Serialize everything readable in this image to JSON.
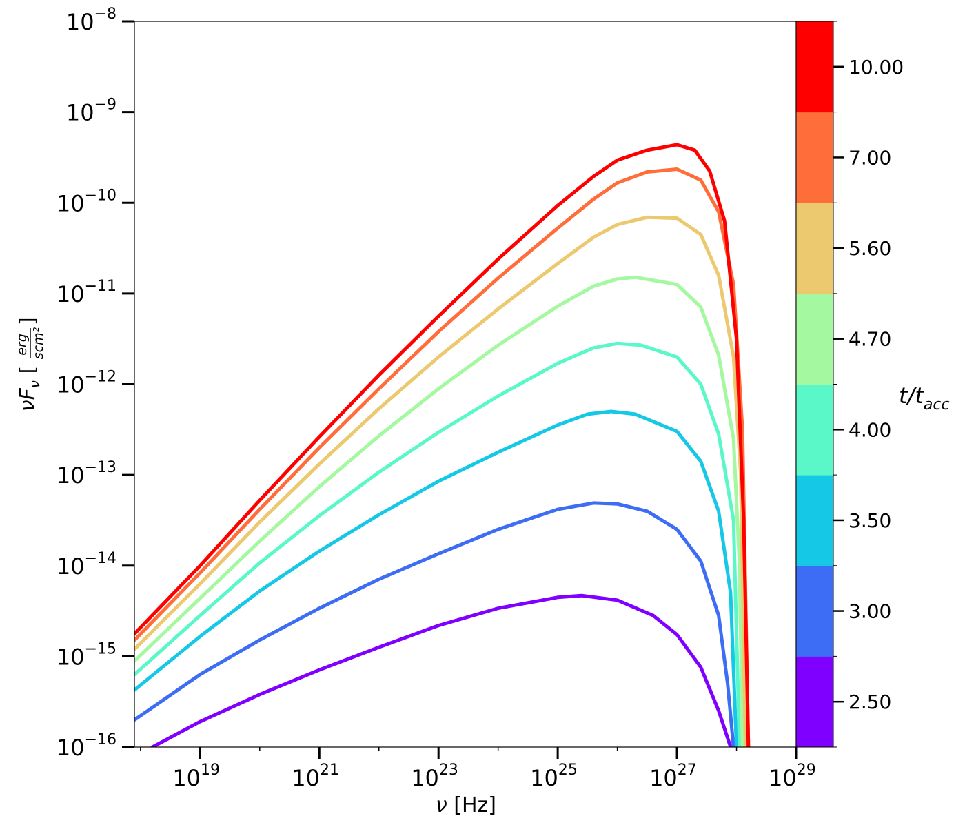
{
  "chart_data": {
    "type": "line",
    "xscale": "log",
    "yscale": "log",
    "xlim": [
      7.9e+17,
      1e+29
    ],
    "ylim": [
      1e-16,
      1e-08
    ],
    "x_ticks": [
      {
        "base": "10",
        "exp": "19"
      },
      {
        "base": "10",
        "exp": "21"
      },
      {
        "base": "10",
        "exp": "23"
      },
      {
        "base": "10",
        "exp": "25"
      },
      {
        "base": "10",
        "exp": "27"
      },
      {
        "base": "10",
        "exp": "29"
      }
    ],
    "y_ticks": [
      {
        "base": "10",
        "exp": "−16"
      },
      {
        "base": "10",
        "exp": "−15"
      },
      {
        "base": "10",
        "exp": "−14"
      },
      {
        "base": "10",
        "exp": "−13"
      },
      {
        "base": "10",
        "exp": "−12"
      },
      {
        "base": "10",
        "exp": "−11"
      },
      {
        "base": "10",
        "exp": "−10"
      },
      {
        "base": "10",
        "exp": "−9"
      },
      {
        "base": "10",
        "exp": "−8"
      }
    ],
    "xlabel": {
      "nu": "ν",
      "unit": " [Hz]"
    },
    "ylabel": {
      "nu": "ν",
      "F": "F",
      "sub": "ν",
      "open": " [",
      "num": "erg",
      "den": "scm²",
      "close": "]"
    },
    "colorbar": {
      "label": {
        "t": "t",
        "slash": "/t",
        "sub": "acc"
      },
      "position": "right",
      "ticks": [
        "2.50",
        "3.00",
        "3.50",
        "4.00",
        "4.70",
        "5.60",
        "7.00",
        "10.00"
      ],
      "colors": [
        "#8000ff",
        "#3c6df4",
        "#14c8e6",
        "#5af8c8",
        "#a4f89f",
        "#ecc86f",
        "#ff6e3a",
        "#ff0000"
      ]
    },
    "grid": false,
    "series": [
      {
        "t": 2.5,
        "color": "#8000ff",
        "points": [
          [
            18.2,
            -16
          ],
          [
            19,
            -15.72
          ],
          [
            20,
            -15.42
          ],
          [
            21,
            -15.15
          ],
          [
            22,
            -14.9
          ],
          [
            23,
            -14.66
          ],
          [
            24,
            -14.47
          ],
          [
            25,
            -14.35
          ],
          [
            25.4,
            -14.33
          ],
          [
            26,
            -14.38
          ],
          [
            26.6,
            -14.55
          ],
          [
            27,
            -14.76
          ],
          [
            27.4,
            -15.12
          ],
          [
            27.7,
            -15.6
          ],
          [
            27.9,
            -16
          ]
        ]
      },
      {
        "t": 3.0,
        "color": "#3c6df4",
        "points": [
          [
            17.9,
            -15.7
          ],
          [
            19,
            -15.2
          ],
          [
            20,
            -14.82
          ],
          [
            21,
            -14.47
          ],
          [
            22,
            -14.15
          ],
          [
            23,
            -13.87
          ],
          [
            24,
            -13.6
          ],
          [
            25,
            -13.38
          ],
          [
            25.6,
            -13.31
          ],
          [
            26,
            -13.32
          ],
          [
            26.5,
            -13.4
          ],
          [
            27,
            -13.6
          ],
          [
            27.4,
            -13.95
          ],
          [
            27.7,
            -14.55
          ],
          [
            27.85,
            -15.3
          ],
          [
            27.95,
            -16
          ]
        ]
      },
      {
        "t": 3.5,
        "color": "#14c8e6",
        "points": [
          [
            17.9,
            -15.37
          ],
          [
            19,
            -14.78
          ],
          [
            20,
            -14.28
          ],
          [
            21,
            -13.84
          ],
          [
            22,
            -13.44
          ],
          [
            23,
            -13.07
          ],
          [
            24,
            -12.75
          ],
          [
            25,
            -12.45
          ],
          [
            25.5,
            -12.33
          ],
          [
            25.9,
            -12.3
          ],
          [
            26.3,
            -12.33
          ],
          [
            27,
            -12.52
          ],
          [
            27.4,
            -12.85
          ],
          [
            27.7,
            -13.4
          ],
          [
            27.9,
            -14.3
          ],
          [
            28,
            -16
          ]
        ]
      },
      {
        "t": 4.0,
        "color": "#5af8c8",
        "points": [
          [
            17.9,
            -15.2
          ],
          [
            19,
            -14.55
          ],
          [
            20,
            -13.97
          ],
          [
            21,
            -13.45
          ],
          [
            22,
            -12.97
          ],
          [
            23,
            -12.53
          ],
          [
            24,
            -12.13
          ],
          [
            25,
            -11.77
          ],
          [
            25.6,
            -11.6
          ],
          [
            26,
            -11.55
          ],
          [
            26.4,
            -11.57
          ],
          [
            27,
            -11.7
          ],
          [
            27.4,
            -12.0
          ],
          [
            27.7,
            -12.55
          ],
          [
            27.95,
            -13.5
          ],
          [
            28.05,
            -16
          ]
        ]
      },
      {
        "t": 4.7,
        "color": "#a4f89f",
        "points": [
          [
            17.9,
            -15.05
          ],
          [
            19,
            -14.36
          ],
          [
            20,
            -13.73
          ],
          [
            21,
            -13.13
          ],
          [
            22,
            -12.57
          ],
          [
            23,
            -12.05
          ],
          [
            24,
            -11.57
          ],
          [
            25,
            -11.14
          ],
          [
            25.6,
            -10.92
          ],
          [
            26,
            -10.84
          ],
          [
            26.3,
            -10.82
          ],
          [
            27,
            -10.9
          ],
          [
            27.4,
            -11.15
          ],
          [
            27.7,
            -11.68
          ],
          [
            27.95,
            -12.6
          ],
          [
            28.05,
            -14.0
          ],
          [
            28.1,
            -16
          ]
        ]
      },
      {
        "t": 5.6,
        "color": "#ecc86f",
        "points": [
          [
            17.9,
            -14.92
          ],
          [
            19,
            -14.2
          ],
          [
            20,
            -13.52
          ],
          [
            21,
            -12.88
          ],
          [
            22,
            -12.27
          ],
          [
            23,
            -11.7
          ],
          [
            24,
            -11.17
          ],
          [
            25,
            -10.67
          ],
          [
            25.6,
            -10.38
          ],
          [
            26,
            -10.24
          ],
          [
            26.5,
            -10.16
          ],
          [
            27,
            -10.17
          ],
          [
            27.4,
            -10.35
          ],
          [
            27.7,
            -10.8
          ],
          [
            27.95,
            -11.7
          ],
          [
            28.07,
            -13.0
          ],
          [
            28.15,
            -16
          ]
        ]
      },
      {
        "t": 7.0,
        "color": "#ff6e3a",
        "points": [
          [
            17.9,
            -14.82
          ],
          [
            19,
            -14.08
          ],
          [
            20,
            -13.38
          ],
          [
            21,
            -12.7
          ],
          [
            22,
            -12.05
          ],
          [
            23,
            -11.42
          ],
          [
            24,
            -10.83
          ],
          [
            25,
            -10.28
          ],
          [
            25.6,
            -9.96
          ],
          [
            26,
            -9.78
          ],
          [
            26.5,
            -9.66
          ],
          [
            27,
            -9.63
          ],
          [
            27.4,
            -9.75
          ],
          [
            27.7,
            -10.1
          ],
          [
            27.95,
            -10.9
          ],
          [
            28.1,
            -12.5
          ],
          [
            28.2,
            -16
          ]
        ]
      },
      {
        "t": 10.0,
        "color": "#ff0000",
        "points": [
          [
            17.9,
            -14.75
          ],
          [
            19,
            -14.0
          ],
          [
            20,
            -13.28
          ],
          [
            21,
            -12.58
          ],
          [
            22,
            -11.9
          ],
          [
            23,
            -11.25
          ],
          [
            24,
            -10.62
          ],
          [
            25,
            -10.03
          ],
          [
            25.6,
            -9.71
          ],
          [
            26,
            -9.53
          ],
          [
            26.5,
            -9.42
          ],
          [
            27,
            -9.36
          ],
          [
            27.3,
            -9.42
          ],
          [
            27.55,
            -9.65
          ],
          [
            27.8,
            -10.2
          ],
          [
            28.0,
            -11.5
          ],
          [
            28.12,
            -13.5
          ],
          [
            28.2,
            -16
          ]
        ]
      }
    ]
  }
}
